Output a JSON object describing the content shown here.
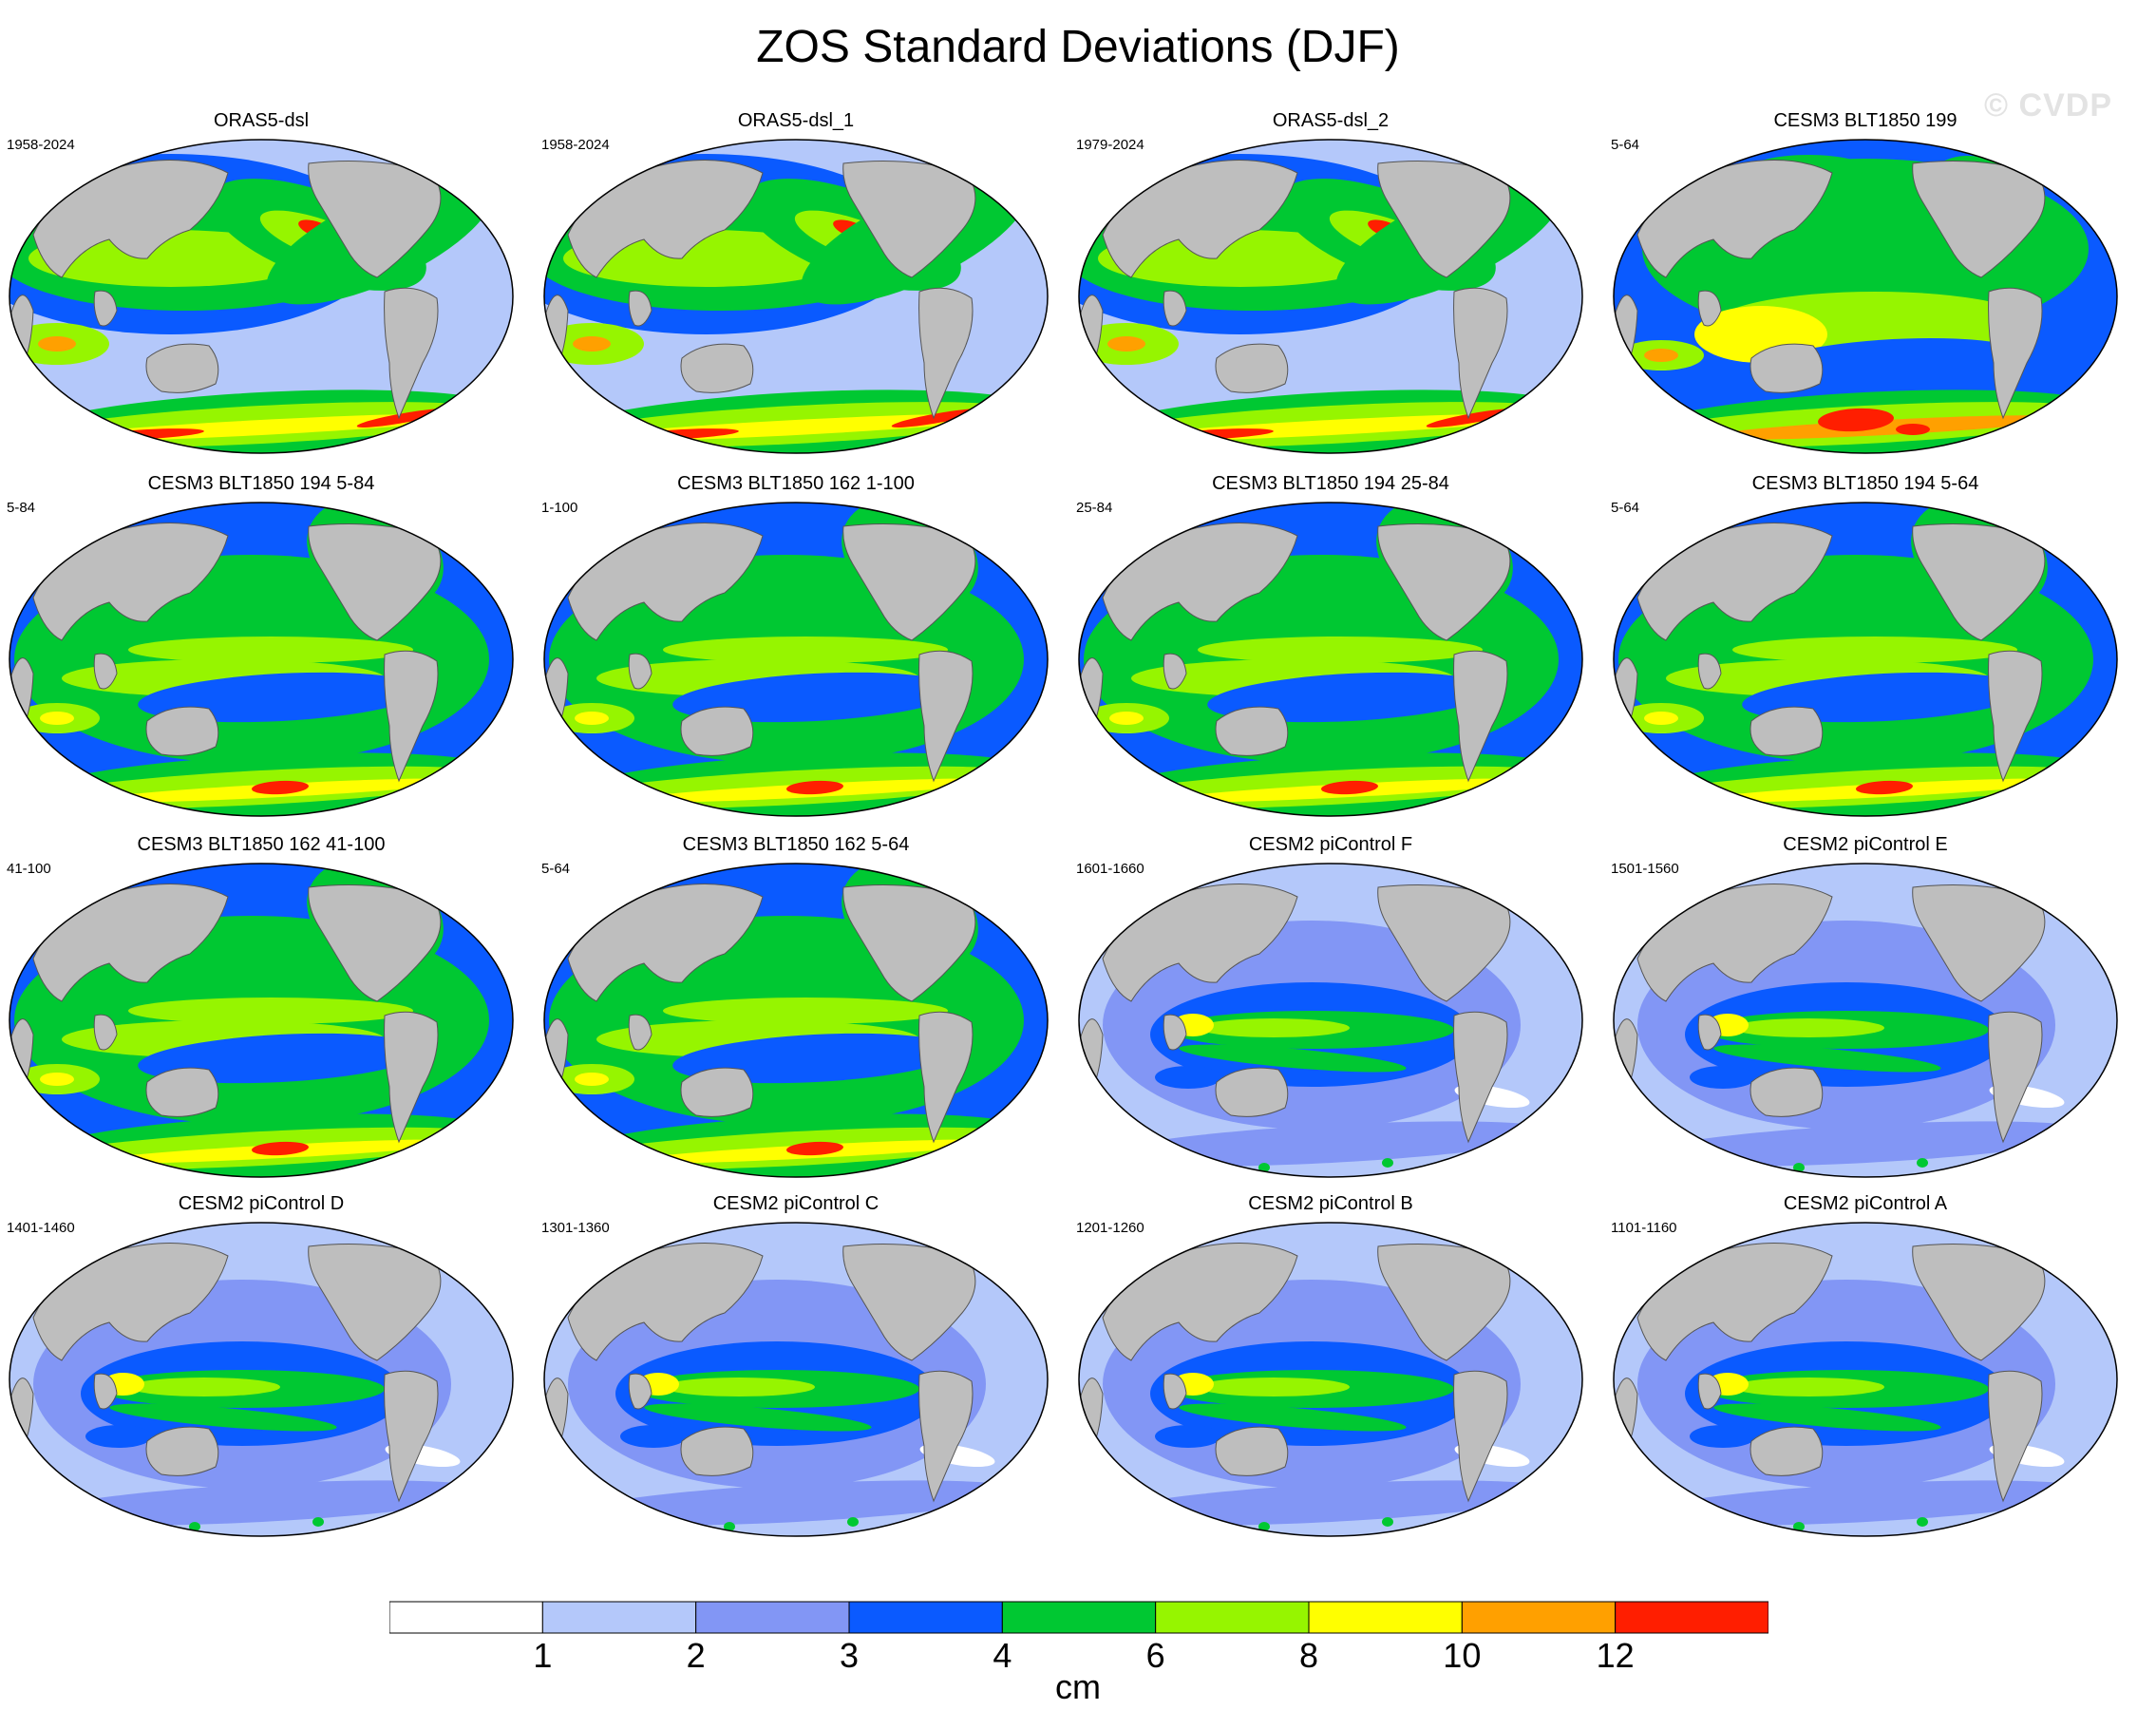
{
  "figure": {
    "title": "ZOS Standard Deviations (DJF)",
    "watermark": "© CVDP"
  },
  "panels": [
    {
      "title": "ORAS5-dsl",
      "years": "1958-2024",
      "style": "oras"
    },
    {
      "title": "ORAS5-dsl_1",
      "years": "1958-2024",
      "style": "oras"
    },
    {
      "title": "ORAS5-dsl_2",
      "years": "1979-2024",
      "style": "oras"
    },
    {
      "title": "CESM3 BLT1850 199",
      "years": "5-64",
      "style": "cesm3-strong"
    },
    {
      "title": "CESM3 BLT1850 194 5-84",
      "years": "5-84",
      "style": "cesm3"
    },
    {
      "title": "CESM3 BLT1850 162 1-100",
      "years": "1-100",
      "style": "cesm3"
    },
    {
      "title": "CESM3 BLT1850 194 25-84",
      "years": "25-84",
      "style": "cesm3"
    },
    {
      "title": "CESM3 BLT1850 194 5-64",
      "years": "5-64",
      "style": "cesm3"
    },
    {
      "title": "CESM3 BLT1850 162 41-100",
      "years": "41-100",
      "style": "cesm3"
    },
    {
      "title": "CESM3 BLT1850 162 5-64",
      "years": "5-64",
      "style": "cesm3"
    },
    {
      "title": "CESM2 piControl F",
      "years": "1601-1660",
      "style": "cesm2"
    },
    {
      "title": "CESM2 piControl E",
      "years": "1501-1560",
      "style": "cesm2"
    },
    {
      "title": "CESM2 piControl D",
      "years": "1401-1460",
      "style": "cesm2"
    },
    {
      "title": "CESM2 piControl C",
      "years": "1301-1360",
      "style": "cesm2"
    },
    {
      "title": "CESM2 piControl B",
      "years": "1201-1260",
      "style": "cesm2"
    },
    {
      "title": "CESM2 piControl A",
      "years": "1101-1160",
      "style": "cesm2"
    }
  ],
  "colorbar": {
    "units": "cm",
    "colors": [
      "#ffffff",
      "#b4c8fa",
      "#8296f5",
      "#0a5aff",
      "#00c832",
      "#96f500",
      "#ffff00",
      "#ffa000",
      "#ff1e00"
    ],
    "labels": [
      "1",
      "2",
      "3",
      "4",
      "6",
      "8",
      "10",
      "12"
    ],
    "land_color": "#bebebe"
  }
}
